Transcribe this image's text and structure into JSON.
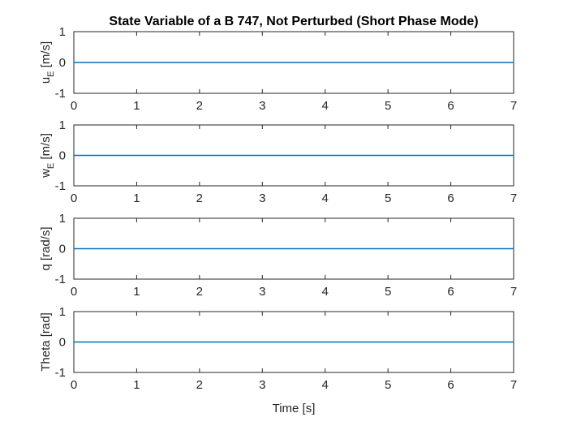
{
  "figure": {
    "title": "State Variable of a B 747, Not Perturbed (Short Phase Mode)",
    "xlabel": "Time [s]"
  },
  "chart_data": [
    {
      "type": "line",
      "ylabel_main": "u",
      "ylabel_sub": "E",
      "ylabel_unit": " [m/s]",
      "xlim": [
        0,
        7
      ],
      "ylim": [
        -1,
        1
      ],
      "xticks": [
        0,
        1,
        2,
        3,
        4,
        5,
        6,
        7
      ],
      "yticks": [
        -1,
        0,
        1
      ],
      "grid": false,
      "series": [
        {
          "x": [
            0,
            7
          ],
          "y": [
            0,
            0
          ],
          "color": "#0072BD"
        }
      ]
    },
    {
      "type": "line",
      "ylabel_main": "w",
      "ylabel_sub": "E",
      "ylabel_unit": " [m/s]",
      "xlim": [
        0,
        7
      ],
      "ylim": [
        -1,
        1
      ],
      "xticks": [
        0,
        1,
        2,
        3,
        4,
        5,
        6,
        7
      ],
      "yticks": [
        -1,
        0,
        1
      ],
      "grid": false,
      "series": [
        {
          "x": [
            0,
            7
          ],
          "y": [
            0,
            0
          ],
          "color": "#0072BD"
        }
      ]
    },
    {
      "type": "line",
      "ylabel_main": "q [rad/s]",
      "ylabel_sub": "",
      "ylabel_unit": "",
      "xlim": [
        0,
        7
      ],
      "ylim": [
        -1,
        1
      ],
      "xticks": [
        0,
        1,
        2,
        3,
        4,
        5,
        6,
        7
      ],
      "yticks": [
        -1,
        0,
        1
      ],
      "grid": false,
      "series": [
        {
          "x": [
            0,
            7
          ],
          "y": [
            0,
            0
          ],
          "color": "#0072BD"
        }
      ]
    },
    {
      "type": "line",
      "ylabel_main": "Theta [rad]",
      "ylabel_sub": "",
      "ylabel_unit": "",
      "xlim": [
        0,
        7
      ],
      "ylim": [
        -1,
        1
      ],
      "xticks": [
        0,
        1,
        2,
        3,
        4,
        5,
        6,
        7
      ],
      "yticks": [
        -1,
        0,
        1
      ],
      "grid": false,
      "series": [
        {
          "x": [
            0,
            7
          ],
          "y": [
            0,
            0
          ],
          "color": "#0072BD"
        }
      ]
    }
  ]
}
